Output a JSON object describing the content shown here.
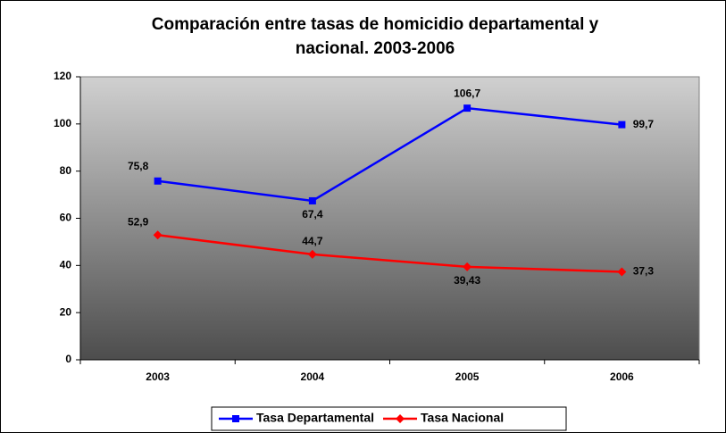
{
  "chart_data": {
    "type": "line",
    "title": "Comparación entre tasas de homicidio departamental y nacional. 2003-2006",
    "categories": [
      "2003",
      "2004",
      "2005",
      "2006"
    ],
    "series": [
      {
        "name": "Tasa Departamental",
        "color": "#0000ff",
        "values": [
          75.8,
          67.4,
          106.7,
          99.7
        ],
        "value_labels": [
          "75,8",
          "67,4",
          "106,7",
          "99,7"
        ]
      },
      {
        "name": "Tasa Nacional",
        "color": "#ff0000",
        "values": [
          52.9,
          44.7,
          39.43,
          37.3
        ],
        "value_labels": [
          "52,9",
          "44,7",
          "39,43",
          "37,3"
        ]
      }
    ],
    "ylim": [
      0,
      120
    ],
    "yticks": [
      0,
      20,
      40,
      60,
      80,
      100,
      120
    ],
    "legend": "bottom"
  }
}
